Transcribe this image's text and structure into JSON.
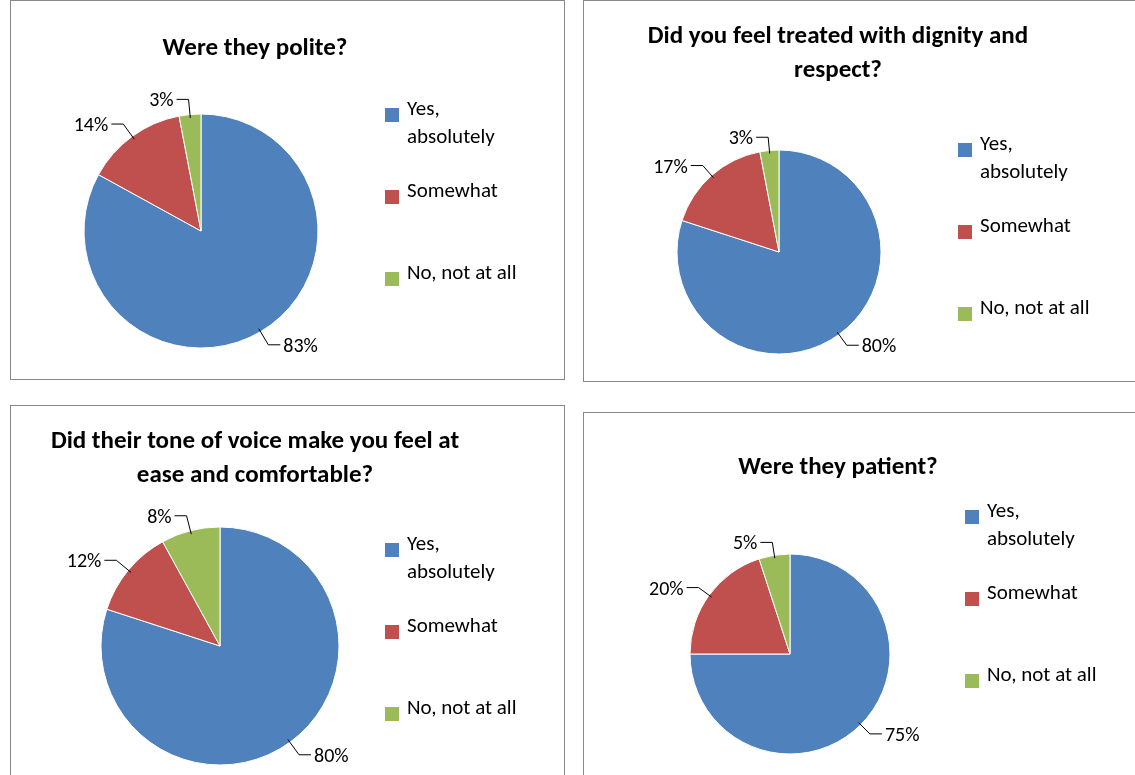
{
  "chart_data": [
    {
      "type": "pie",
      "title": "Were they polite?",
      "categories": [
        "Yes, absolutely",
        "Somewhat",
        "No, not at all"
      ],
      "values": [
        83,
        14,
        3
      ],
      "value_labels": [
        "83%",
        "14%",
        "3%"
      ],
      "colors": [
        "#4f81bd",
        "#c0504d",
        "#9bbb59"
      ],
      "legend": "right"
    },
    {
      "type": "pie",
      "title": "Did you feel treated with dignity and respect?",
      "categories": [
        "Yes, absolutely",
        "Somewhat",
        "No, not at all"
      ],
      "values": [
        80,
        17,
        3
      ],
      "value_labels": [
        "80%",
        "17%",
        "3%"
      ],
      "colors": [
        "#4f81bd",
        "#c0504d",
        "#9bbb59"
      ],
      "legend": "right"
    },
    {
      "type": "pie",
      "title": "Did their tone of voice make you feel at ease and comfortable?",
      "categories": [
        "Yes, absolutely",
        "Somewhat",
        "No, not at all"
      ],
      "values": [
        80,
        12,
        8
      ],
      "value_labels": [
        "80%",
        "12%",
        "8%"
      ],
      "colors": [
        "#4f81bd",
        "#c0504d",
        "#9bbb59"
      ],
      "legend": "right"
    },
    {
      "type": "pie",
      "title": "Were they patient?",
      "categories": [
        "Yes, absolutely",
        "Somewhat",
        "No, not at all"
      ],
      "values": [
        75,
        20,
        5
      ],
      "value_labels": [
        "75%",
        "20%",
        "5%"
      ],
      "colors": [
        "#4f81bd",
        "#c0504d",
        "#9bbb59"
      ],
      "legend": "right"
    }
  ]
}
